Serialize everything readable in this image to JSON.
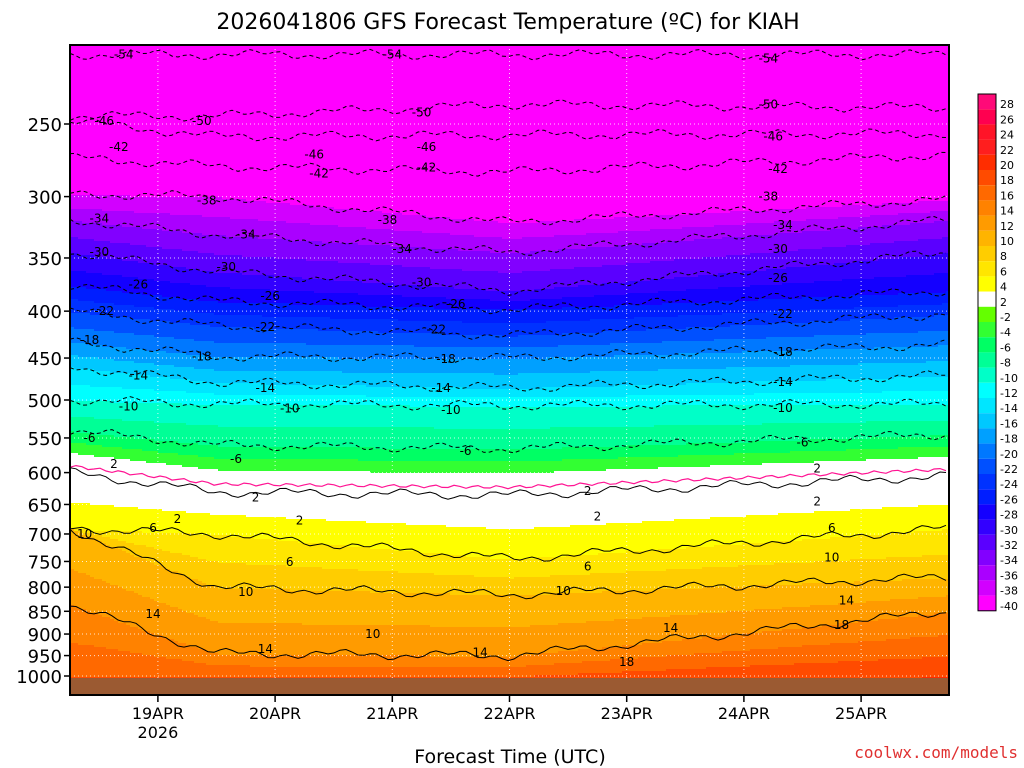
{
  "chart_data": {
    "type": "heatmap",
    "title": "2026041806 GFS Forecast Temperature (ºC) for KIAH",
    "xlabel": "Forecast Time (UTC)",
    "credit": "coolwx.com/models",
    "x_ticks": [
      {
        "label": "19APR",
        "sublabel": "2026",
        "hour": 18
      },
      {
        "label": "20APR",
        "sublabel": "",
        "hour": 42
      },
      {
        "label": "21APR",
        "sublabel": "",
        "hour": 66
      },
      {
        "label": "22APR",
        "sublabel": "",
        "hour": 90
      },
      {
        "label": "23APR",
        "sublabel": "",
        "hour": 114
      },
      {
        "label": "24APR",
        "sublabel": "",
        "hour": 138
      },
      {
        "label": "25APR",
        "sublabel": "",
        "hour": 162
      }
    ],
    "x_range_hours": [
      0,
      180
    ],
    "y_ticks": [
      250,
      300,
      350,
      400,
      450,
      500,
      550,
      600,
      650,
      700,
      750,
      800,
      850,
      900,
      950,
      1000
    ],
    "y_range_hpa": [
      200,
      1025
    ],
    "colorbar": {
      "levels": [
        28,
        26,
        24,
        22,
        20,
        18,
        16,
        14,
        12,
        10,
        8,
        6,
        4,
        2,
        -2,
        -4,
        -6,
        -8,
        -10,
        -12,
        -14,
        -16,
        -18,
        -20,
        -22,
        -24,
        -26,
        -28,
        -30,
        -32,
        -34,
        -36,
        -38,
        -40
      ],
      "colors": [
        "#ff0a78",
        "#ff0050",
        "#ff1428",
        "#ff1e1e",
        "#ff2d00",
        "#ff4b00",
        "#ff6900",
        "#ff8200",
        "#ff9b00",
        "#ffb400",
        "#ffcd00",
        "#ffe600",
        "#ffff00",
        "#ffffff",
        "#64ff00",
        "#32ff32",
        "#00ff64",
        "#00ff96",
        "#00ffc8",
        "#00ffff",
        "#00e6ff",
        "#00c8ff",
        "#00a0ff",
        "#0078ff",
        "#0050ff",
        "#0032ff",
        "#001eff",
        "#1400ff",
        "#3200ff",
        "#5a00ff",
        "#8200ff",
        "#aa00ff",
        "#d200ff",
        "#ff00ff"
      ]
    },
    "isotherm_profile_hpa_at_t": [
      {
        "temp": -54,
        "p": [
          210,
          210,
          210,
          210
        ]
      },
      {
        "temp": -50,
        "p": [
          245,
          245,
          238,
          240
        ]
      },
      {
        "temp": -46,
        "p": [
          248,
          258,
          257,
          256
        ]
      },
      {
        "temp": -42,
        "p": [
          272,
          278,
          282,
          270
        ]
      },
      {
        "temp": -38,
        "p": [
          298,
          300,
          320,
          302
        ]
      },
      {
        "temp": -34,
        "p": [
          318,
          330,
          345,
          318
        ]
      },
      {
        "temp": -30,
        "p": [
          345,
          362,
          380,
          345
        ]
      },
      {
        "temp": -26,
        "p": [
          375,
          390,
          398,
          380
        ]
      },
      {
        "temp": -22,
        "p": [
          400,
          415,
          425,
          403
        ]
      },
      {
        "temp": -18,
        "p": [
          432,
          448,
          450,
          435
        ]
      },
      {
        "temp": -14,
        "p": [
          460,
          478,
          485,
          470
        ]
      },
      {
        "temp": -10,
        "p": [
          500,
          505,
          507,
          505
        ]
      },
      {
        "temp": -6,
        "p": [
          540,
          560,
          565,
          545
        ]
      },
      {
        "temp": 2,
        "p": [
          600,
          630,
          635,
          605
        ]
      },
      {
        "temp": 6,
        "p": [
          690,
          700,
          745,
          690
        ]
      },
      {
        "temp": 10,
        "p": [
          690,
          800,
          815,
          780
        ]
      },
      {
        "temp": 14,
        "p": [
          835,
          945,
          950,
          850
        ]
      },
      {
        "temp": 18,
        "p": [
          1000,
          1000,
          1000,
          950
        ]
      }
    ],
    "contour_labels": [
      {
        "text": "-54",
        "t": 11,
        "p": 210
      },
      {
        "text": "-54",
        "t": 66,
        "p": 210
      },
      {
        "text": "-54",
        "t": 143,
        "p": 212
      },
      {
        "text": "-50",
        "t": 27,
        "p": 248
      },
      {
        "text": "-50",
        "t": 72,
        "p": 243
      },
      {
        "text": "-50",
        "t": 143,
        "p": 238
      },
      {
        "text": "-46",
        "t": 7,
        "p": 248
      },
      {
        "text": "-46",
        "t": 50,
        "p": 270
      },
      {
        "text": "-46",
        "t": 73,
        "p": 265
      },
      {
        "text": "-46",
        "t": 144,
        "p": 258
      },
      {
        "text": "-42",
        "t": 10,
        "p": 265
      },
      {
        "text": "-42",
        "t": 51,
        "p": 283
      },
      {
        "text": "-42",
        "t": 73,
        "p": 279
      },
      {
        "text": "-42",
        "t": 145,
        "p": 280
      },
      {
        "text": "-38",
        "t": 28,
        "p": 303
      },
      {
        "text": "-38",
        "t": 65,
        "p": 318
      },
      {
        "text": "-38",
        "t": 143,
        "p": 300
      },
      {
        "text": "-34",
        "t": 6,
        "p": 317
      },
      {
        "text": "-34",
        "t": 36,
        "p": 330
      },
      {
        "text": "-34",
        "t": 68,
        "p": 342
      },
      {
        "text": "-34",
        "t": 146,
        "p": 322
      },
      {
        "text": "-30",
        "t": 6,
        "p": 345
      },
      {
        "text": "-30",
        "t": 32,
        "p": 358
      },
      {
        "text": "-30",
        "t": 72,
        "p": 372
      },
      {
        "text": "-30",
        "t": 145,
        "p": 342
      },
      {
        "text": "-26",
        "t": 14,
        "p": 374
      },
      {
        "text": "-26",
        "t": 41,
        "p": 385
      },
      {
        "text": "-26",
        "t": 79,
        "p": 393
      },
      {
        "text": "-26",
        "t": 145,
        "p": 368
      },
      {
        "text": "-22",
        "t": 7,
        "p": 400
      },
      {
        "text": "-22",
        "t": 40,
        "p": 416
      },
      {
        "text": "-22",
        "t": 75,
        "p": 419
      },
      {
        "text": "-22",
        "t": 146,
        "p": 403
      },
      {
        "text": "-18",
        "t": 4,
        "p": 430
      },
      {
        "text": "-18",
        "t": 27,
        "p": 448
      },
      {
        "text": "-18",
        "t": 77,
        "p": 451
      },
      {
        "text": "-18",
        "t": 146,
        "p": 443
      },
      {
        "text": "-14",
        "t": 14,
        "p": 470
      },
      {
        "text": "-14",
        "t": 40,
        "p": 485
      },
      {
        "text": "-14",
        "t": 76,
        "p": 485
      },
      {
        "text": "-14",
        "t": 146,
        "p": 478
      },
      {
        "text": "-10",
        "t": 12,
        "p": 508
      },
      {
        "text": "-10",
        "t": 45,
        "p": 511
      },
      {
        "text": "-10",
        "t": 78,
        "p": 513
      },
      {
        "text": "-10",
        "t": 146,
        "p": 510
      },
      {
        "text": "-6",
        "t": 4,
        "p": 550
      },
      {
        "text": "-6",
        "t": 34,
        "p": 580
      },
      {
        "text": "-6",
        "t": 81,
        "p": 568
      },
      {
        "text": "-6",
        "t": 150,
        "p": 556
      },
      {
        "text": "2",
        "t": 9,
        "p": 587
      },
      {
        "text": "2",
        "t": 22,
        "p": 674
      },
      {
        "text": "2",
        "t": 38,
        "p": 639
      },
      {
        "text": "2",
        "t": 47,
        "p": 677
      },
      {
        "text": "2",
        "t": 106,
        "p": 628
      },
      {
        "text": "2",
        "t": 108,
        "p": 670
      },
      {
        "text": "2",
        "t": 153,
        "p": 594
      },
      {
        "text": "2",
        "t": 153,
        "p": 645
      },
      {
        "text": "6",
        "t": 17,
        "p": 690
      },
      {
        "text": "6",
        "t": 45,
        "p": 751
      },
      {
        "text": "6",
        "t": 106,
        "p": 760
      },
      {
        "text": "6",
        "t": 156,
        "p": 690
      },
      {
        "text": "10",
        "t": 3,
        "p": 700
      },
      {
        "text": "10",
        "t": 36,
        "p": 810
      },
      {
        "text": "10",
        "t": 101,
        "p": 808
      },
      {
        "text": "10",
        "t": 156,
        "p": 743
      },
      {
        "text": "10",
        "t": 62,
        "p": 900
      },
      {
        "text": "14",
        "t": 17,
        "p": 856
      },
      {
        "text": "14",
        "t": 40,
        "p": 935
      },
      {
        "text": "14",
        "t": 84,
        "p": 943
      },
      {
        "text": "14",
        "t": 123,
        "p": 886
      },
      {
        "text": "14",
        "t": 159,
        "p": 827
      },
      {
        "text": "18",
        "t": 114,
        "p": 965
      },
      {
        "text": "18",
        "t": 158,
        "p": 880
      }
    ]
  }
}
